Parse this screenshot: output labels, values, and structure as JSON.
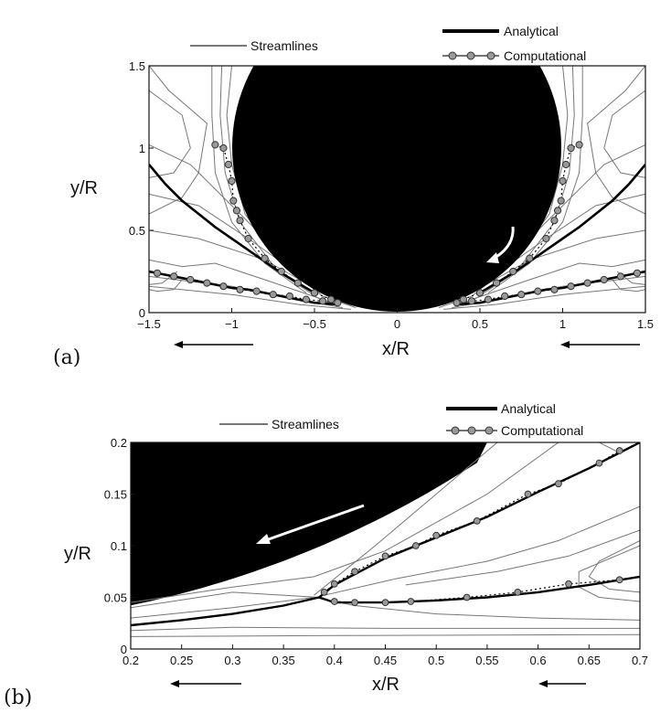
{
  "chart_data": [
    {
      "panel_label": "(a)",
      "type": "line",
      "xlabel": "x/R",
      "ylabel": "y/R",
      "xlim": [
        -1.5,
        1.5
      ],
      "ylim": [
        0,
        1.5
      ],
      "xticks": [
        "−1.5",
        "−1",
        "−0.5",
        "0",
        "0.5",
        "1",
        "1.5"
      ],
      "yticks": [
        "0",
        "0.5",
        "1",
        "1.5"
      ],
      "legend": {
        "streamlines": "Streamlines",
        "analytical": "Analytical",
        "computational": "Computational"
      },
      "series": [
        {
          "name": "Analytical",
          "x": [
            0.36,
            0.5,
            0.6,
            0.7,
            0.8,
            0.9,
            1.0,
            1.1,
            1.2,
            1.3,
            1.4,
            1.5
          ],
          "y": [
            0.05,
            0.06,
            0.08,
            0.1,
            0.12,
            0.14,
            0.15,
            0.17,
            0.19,
            0.21,
            0.23,
            0.25
          ]
        },
        {
          "name": "Analytical",
          "x": [
            0.5,
            0.6,
            0.7,
            0.8,
            0.9,
            1.0,
            1.1,
            1.2,
            1.3,
            1.4,
            1.5
          ],
          "y": [
            0.12,
            0.18,
            0.24,
            0.31,
            0.38,
            0.45,
            0.52,
            0.6,
            0.68,
            0.78,
            0.9
          ]
        },
        {
          "name": "Computational",
          "x": [
            0.36,
            0.45,
            0.55,
            0.65,
            0.75,
            0.85,
            0.95,
            1.05,
            1.15,
            1.25,
            1.35,
            1.45
          ],
          "y": [
            0.06,
            0.07,
            0.08,
            0.1,
            0.11,
            0.13,
            0.14,
            0.16,
            0.18,
            0.2,
            0.22,
            0.24
          ]
        },
        {
          "name": "Computational",
          "x": [
            0.4,
            0.5,
            0.6,
            0.7,
            0.8,
            0.9,
            0.95,
            0.97,
            0.99,
            1.0,
            1.02,
            1.05,
            1.1
          ],
          "y": [
            0.08,
            0.12,
            0.18,
            0.25,
            0.33,
            0.45,
            0.56,
            0.62,
            0.68,
            0.8,
            0.9,
            1.0,
            1.02
          ]
        }
      ],
      "obstacle": {
        "shape": "circle",
        "center": [
          0,
          1.0
        ],
        "radius": 1.0
      }
    },
    {
      "panel_label": "(b)",
      "type": "line",
      "xlabel": "x/R",
      "ylabel": "y/R",
      "xlim": [
        0.2,
        0.7
      ],
      "ylim": [
        0,
        0.2
      ],
      "xticks": [
        "0.2",
        "0.25",
        "0.3",
        "0.35",
        "0.4",
        "0.45",
        "0.5",
        "0.55",
        "0.6",
        "0.65",
        "0.7"
      ],
      "yticks": [
        "0",
        "0.05",
        "0.1",
        "0.15",
        "0.2"
      ],
      "legend": {
        "streamlines": "Streamlines",
        "analytical": "Analytical",
        "computational": "Computational"
      },
      "series": [
        {
          "name": "Analytical",
          "x": [
            0.2,
            0.25,
            0.3,
            0.35,
            0.385,
            0.4,
            0.45,
            0.5,
            0.55,
            0.6,
            0.65,
            0.7
          ],
          "y": [
            0.023,
            0.028,
            0.034,
            0.042,
            0.05,
            0.045,
            0.045,
            0.047,
            0.05,
            0.055,
            0.062,
            0.07
          ]
        },
        {
          "name": "Analytical",
          "x": [
            0.385,
            0.4,
            0.45,
            0.5,
            0.55,
            0.6,
            0.65,
            0.7
          ],
          "y": [
            0.05,
            0.062,
            0.088,
            0.108,
            0.128,
            0.152,
            0.175,
            0.2
          ]
        },
        {
          "name": "Computational",
          "x": [
            0.4,
            0.42,
            0.45,
            0.475,
            0.53,
            0.58,
            0.63,
            0.68
          ],
          "y": [
            0.046,
            0.045,
            0.045,
            0.046,
            0.05,
            0.055,
            0.063,
            0.067
          ]
        },
        {
          "name": "Computational",
          "x": [
            0.39,
            0.4,
            0.42,
            0.45,
            0.48,
            0.5,
            0.54,
            0.59,
            0.62,
            0.66,
            0.68
          ],
          "y": [
            0.055,
            0.063,
            0.075,
            0.09,
            0.1,
            0.11,
            0.124,
            0.15,
            0.16,
            0.18,
            0.192
          ]
        }
      ]
    }
  ]
}
